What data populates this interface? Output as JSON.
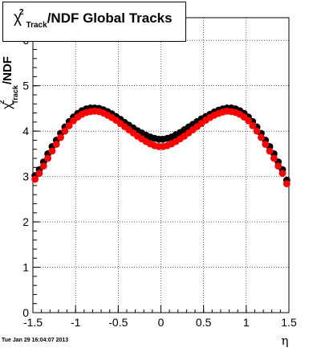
{
  "title": {
    "symbol": "χ",
    "superscript": "2",
    "subscript": "Track",
    "text": "/NDF  Global Tracks"
  },
  "timestamp": "Tue Jan 29 16:04:07 2013",
  "chart_data": {
    "type": "scatter",
    "title": "χ²_Track/NDF  Global Tracks",
    "xlabel": "η",
    "ylabel": "χ²_Track/NDF",
    "xlim": [
      -1.5,
      1.5
    ],
    "ylim": [
      0,
      6.5
    ],
    "xticks": [
      "-1.5",
      "-1",
      "-0.5",
      "0",
      "0.5",
      "1",
      "1.5"
    ],
    "yticks": [
      "0",
      "1",
      "2",
      "3",
      "4",
      "5",
      "6"
    ],
    "grid": true,
    "colors": {
      "series1": "#000000",
      "series2": "#ff0000"
    },
    "x": [
      -1.475,
      -1.425,
      -1.375,
      -1.325,
      -1.275,
      -1.225,
      -1.175,
      -1.125,
      -1.075,
      -1.025,
      -0.975,
      -0.925,
      -0.875,
      -0.825,
      -0.775,
      -0.725,
      -0.675,
      -0.625,
      -0.575,
      -0.525,
      -0.475,
      -0.425,
      -0.375,
      -0.325,
      -0.275,
      -0.225,
      -0.175,
      -0.125,
      -0.075,
      -0.025,
      0.025,
      0.075,
      0.125,
      0.175,
      0.225,
      0.275,
      0.325,
      0.375,
      0.425,
      0.475,
      0.525,
      0.575,
      0.625,
      0.675,
      0.725,
      0.775,
      0.825,
      0.875,
      0.925,
      0.975,
      1.025,
      1.075,
      1.125,
      1.175,
      1.225,
      1.275,
      1.325,
      1.375,
      1.425,
      1.475
    ],
    "series": [
      {
        "values": [
          3.02,
          3.15,
          3.32,
          3.5,
          3.66,
          3.8,
          3.95,
          4.09,
          4.21,
          4.31,
          4.39,
          4.45,
          4.49,
          4.51,
          4.51,
          4.5,
          4.47,
          4.43,
          4.38,
          4.32,
          4.26,
          4.19,
          4.13,
          4.07,
          4.01,
          3.96,
          3.91,
          3.87,
          3.84,
          3.82,
          3.82,
          3.84,
          3.87,
          3.92,
          3.97,
          4.03,
          4.09,
          4.15,
          4.21,
          4.27,
          4.32,
          4.37,
          4.42,
          4.46,
          4.49,
          4.51,
          4.51,
          4.49,
          4.45,
          4.39,
          4.31,
          4.21,
          4.09,
          3.95,
          3.8,
          3.66,
          3.5,
          3.32,
          3.15,
          2.92
        ]
      },
      {
        "values": [
          2.94,
          3.07,
          3.23,
          3.4,
          3.56,
          3.71,
          3.86,
          4.0,
          4.12,
          4.23,
          4.31,
          4.37,
          4.41,
          4.43,
          4.44,
          4.43,
          4.4,
          4.35,
          4.3,
          4.24,
          4.17,
          4.1,
          4.03,
          3.96,
          3.89,
          3.83,
          3.77,
          3.72,
          3.68,
          3.66,
          3.66,
          3.68,
          3.72,
          3.77,
          3.83,
          3.89,
          3.96,
          4.03,
          4.1,
          4.17,
          4.24,
          4.3,
          4.35,
          4.39,
          4.42,
          4.44,
          4.43,
          4.41,
          4.37,
          4.31,
          4.23,
          4.12,
          4.0,
          3.86,
          3.71,
          3.56,
          3.4,
          3.23,
          3.07,
          2.84
        ]
      }
    ]
  }
}
